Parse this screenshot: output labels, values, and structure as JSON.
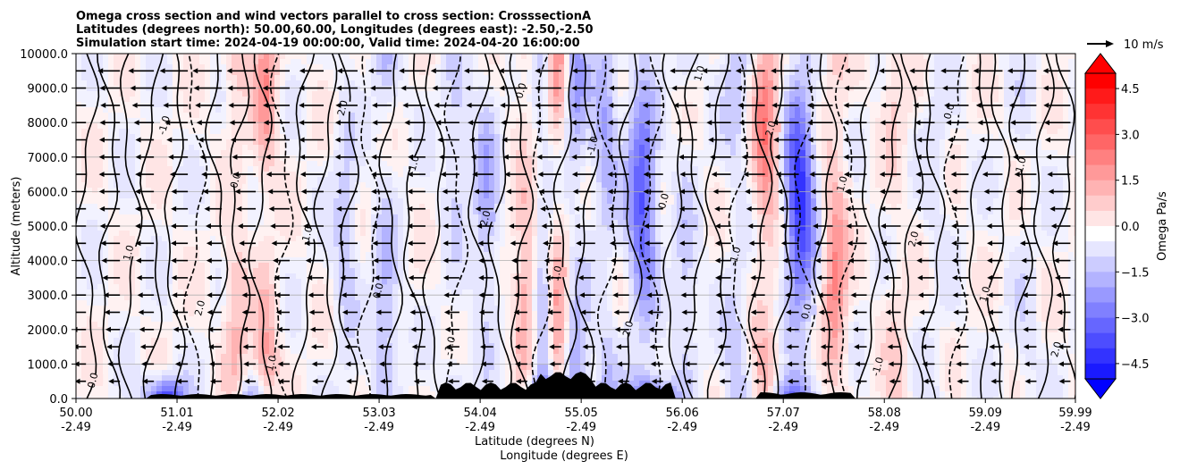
{
  "chart_data": {
    "type": "heatmap",
    "title_lines": [
      "Omega cross section and wind vectors parallel to cross section: CrosssectionA",
      "Latitudes (degrees north): 50.00,60.00, Longitudes (degrees east): -2.50,-2.50",
      "Simulation start time: 2024-04-19 00:00:00, Valid time: 2024-04-20 16:00:00"
    ],
    "ylabel": "Altitude (meters)",
    "xlabel_lines": [
      "Latitude (degrees N)",
      "Longitude (degrees E)"
    ],
    "xlim": [
      50.0,
      59.99
    ],
    "ylim": [
      0,
      10000
    ],
    "y_ticks": [
      "0.0",
      "1000.0",
      "2000.0",
      "3000.0",
      "4000.0",
      "5000.0",
      "6000.0",
      "7000.0",
      "8000.0",
      "9000.0",
      "10000.0"
    ],
    "x_ticks": [
      {
        "lat": "50.00",
        "lon": "-2.49"
      },
      {
        "lat": "51.01",
        "lon": "-2.49"
      },
      {
        "lat": "52.02",
        "lon": "-2.49"
      },
      {
        "lat": "53.03",
        "lon": "-2.49"
      },
      {
        "lat": "54.04",
        "lon": "-2.49"
      },
      {
        "lat": "55.05",
        "lon": "-2.49"
      },
      {
        "lat": "56.06",
        "lon": "-2.49"
      },
      {
        "lat": "57.07",
        "lon": "-2.49"
      },
      {
        "lat": "58.08",
        "lon": "-2.49"
      },
      {
        "lat": "59.09",
        "lon": "-2.49"
      },
      {
        "lat": "59.99",
        "lon": "-2.49"
      }
    ],
    "grid": true,
    "colorbar": {
      "label": "Omega Pa/s",
      "range": [
        -5.0,
        5.0
      ],
      "ticks": [
        "4.5",
        "3.0",
        "1.5",
        "0.0",
        "−1.5",
        "−3.0",
        "−4.5"
      ],
      "tick_values": [
        4.5,
        3.0,
        1.5,
        0.0,
        -1.5,
        -3.0,
        -4.5
      ],
      "extend": "both",
      "cmap": "bwr"
    },
    "quiver_key": {
      "label": "10 m/s"
    },
    "contour_labels": [
      "0.0",
      "1.0",
      "-1.0",
      "2.0"
    ]
  }
}
